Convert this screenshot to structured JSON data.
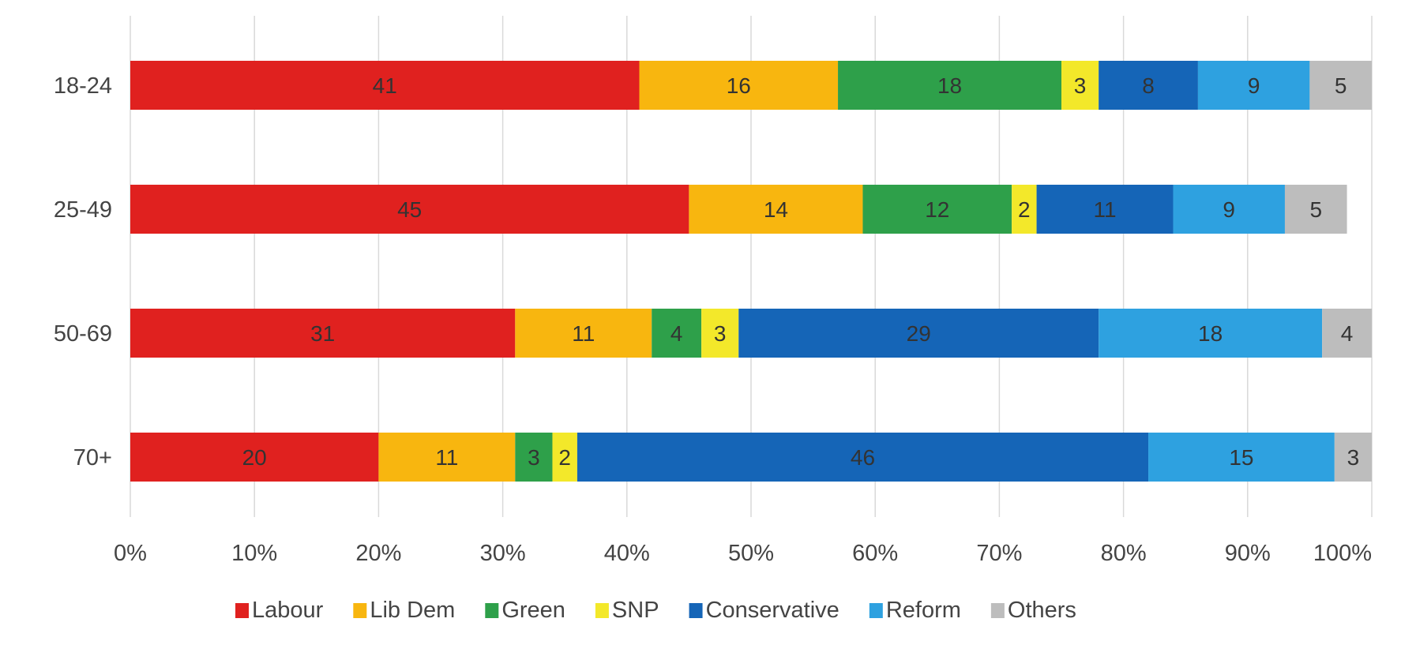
{
  "chart_data": {
    "type": "bar",
    "orientation": "horizontal",
    "stacked": true,
    "categories": [
      "18-24",
      "25-49",
      "50-69",
      "70+"
    ],
    "series": [
      {
        "name": "Labour",
        "color": "#e0211f",
        "values": [
          41,
          45,
          31,
          20
        ]
      },
      {
        "name": "Lib Dem",
        "color": "#f8b60f",
        "values": [
          16,
          14,
          11,
          11
        ]
      },
      {
        "name": "Green",
        "color": "#2ea04a",
        "values": [
          18,
          12,
          4,
          3
        ]
      },
      {
        "name": "SNP",
        "color": "#f3e82a",
        "values": [
          3,
          2,
          3,
          2
        ]
      },
      {
        "name": "Conservative",
        "color": "#1565b7",
        "values": [
          8,
          11,
          29,
          46
        ]
      },
      {
        "name": "Reform",
        "color": "#2ea1e0",
        "values": [
          9,
          9,
          18,
          15
        ]
      },
      {
        "name": "Others",
        "color": "#bdbdbd",
        "values": [
          5,
          5,
          4,
          3
        ]
      }
    ],
    "xlim": [
      0,
      100
    ],
    "xticks": [
      "0%",
      "10%",
      "20%",
      "30%",
      "40%",
      "50%",
      "60%",
      "70%",
      "80%",
      "90%",
      "100%"
    ],
    "grid": "vertical",
    "legend_position": "bottom"
  }
}
